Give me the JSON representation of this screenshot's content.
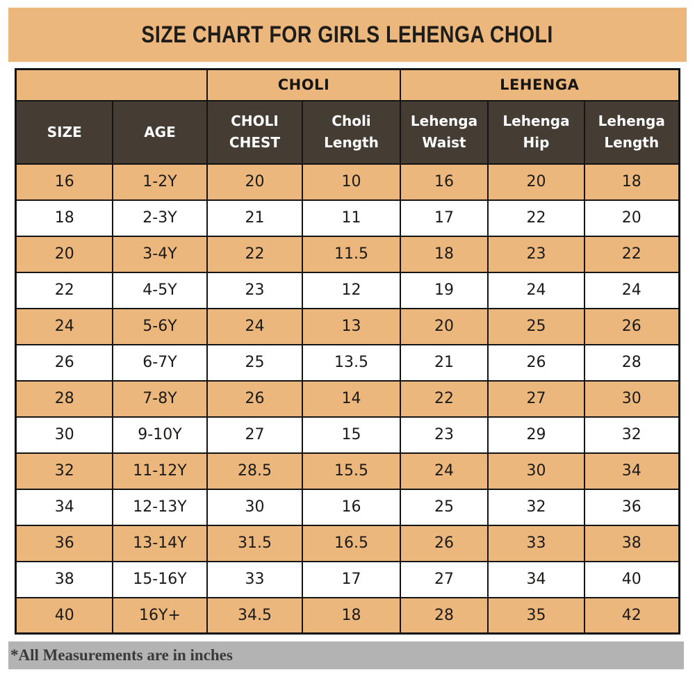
{
  "banner": {
    "title": "SIZE CHART FOR GIRLS LEHENGA CHOLI"
  },
  "table": {
    "group_headers": [
      {
        "label": "",
        "colspan": 2
      },
      {
        "label": "CHOLI",
        "colspan": 2
      },
      {
        "label": "LEHENGA",
        "colspan": 3
      }
    ],
    "column_headers": [
      "SIZE",
      "AGE",
      "CHOLI\nCHEST",
      "Choli\nLength",
      "Lehenga\nWaist",
      "Lehenga\nHip",
      "Lehenga\nLength"
    ],
    "rows": [
      [
        "16",
        "1-2Y",
        "20",
        "10",
        "16",
        "20",
        "18"
      ],
      [
        "18",
        "2-3Y",
        "21",
        "11",
        "17",
        "22",
        "20"
      ],
      [
        "20",
        "3-4Y",
        "22",
        "11.5",
        "18",
        "23",
        "22"
      ],
      [
        "22",
        "4-5Y",
        "23",
        "12",
        "19",
        "24",
        "24"
      ],
      [
        "24",
        "5-6Y",
        "24",
        "13",
        "20",
        "25",
        "26"
      ],
      [
        "26",
        "6-7Y",
        "25",
        "13.5",
        "21",
        "26",
        "28"
      ],
      [
        "28",
        "7-8Y",
        "26",
        "14",
        "22",
        "27",
        "30"
      ],
      [
        "30",
        "9-10Y",
        "27",
        "15",
        "23",
        "29",
        "32"
      ],
      [
        "32",
        "11-12Y",
        "28.5",
        "15.5",
        "24",
        "30",
        "34"
      ],
      [
        "34",
        "12-13Y",
        "30",
        "16",
        "25",
        "32",
        "36"
      ],
      [
        "36",
        "13-14Y",
        "31.5",
        "16.5",
        "26",
        "33",
        "38"
      ],
      [
        "38",
        "15-16Y",
        "33",
        "17",
        "27",
        "34",
        "40"
      ],
      [
        "40",
        "16Y+",
        "34.5",
        "18",
        "28",
        "35",
        "42"
      ]
    ]
  },
  "footer": {
    "note": "*All Measurements are in inches"
  },
  "colors": {
    "tan": "#ECB77C",
    "dark_brown": "#453C33",
    "footer_gray": "#B3B3B3",
    "border": "#141414"
  }
}
